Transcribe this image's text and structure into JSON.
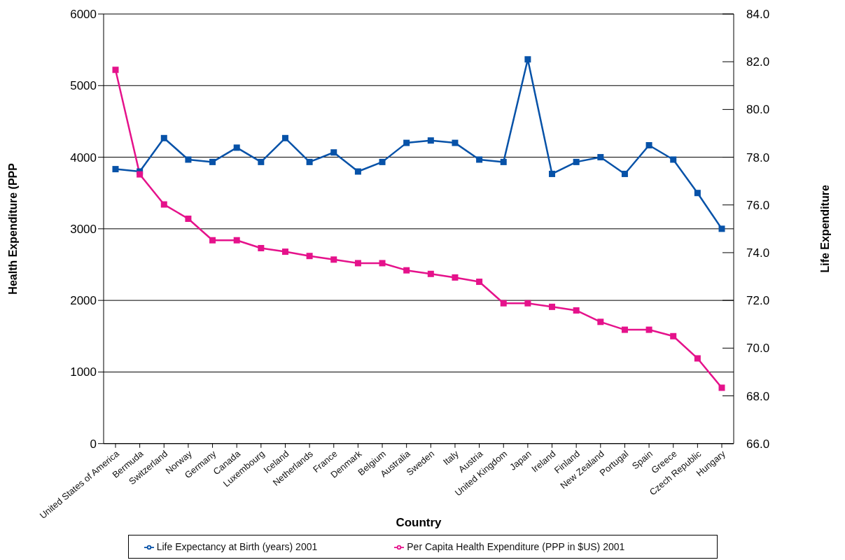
{
  "chart_data": {
    "type": "line",
    "xlabel": "Country",
    "ylabel": "Health Expenditure (PPP",
    "y2label": "Life Expenditure",
    "categories": [
      "United States of America",
      "Bermuda",
      "Switzerland",
      "Norway",
      "Germany",
      "Canada",
      "Luxembourg",
      "Iceland",
      "Netherlands",
      "France",
      "Denmark",
      "Belgium",
      "Australia",
      "Sweden",
      "Italy",
      "Austria",
      "United Kingdom",
      "Japan",
      "Ireland",
      "Finland",
      "New Zealand",
      "Portugal",
      "Spain",
      "Greece",
      "Czech Republic",
      "Hungary"
    ],
    "series": [
      {
        "name": "Per Capita Health Expenditure (PPP in $US) 2001",
        "color": "#e5128b",
        "values": [
          5220,
          3760,
          3340,
          3140,
          2840,
          2840,
          2730,
          2680,
          2620,
          2570,
          2520,
          2520,
          2420,
          2370,
          2320,
          2260,
          1960,
          1960,
          1910,
          1860,
          1700,
          1590,
          1590,
          1500,
          1190,
          780
        ]
      },
      {
        "name": "Life Expectancy at Birth (years) 2001",
        "color": "#0752a8",
        "axis": "y2",
        "values": [
          77.5,
          77.4,
          78.8,
          77.9,
          77.8,
          78.4,
          77.8,
          78.8,
          77.8,
          78.2,
          77.4,
          77.8,
          78.6,
          78.7,
          78.6,
          77.9,
          77.8,
          82.1,
          77.3,
          77.8,
          78.0,
          77.3,
          78.5,
          77.9,
          76.5,
          75.0
        ]
      }
    ],
    "ylim": [
      0,
      6000
    ],
    "yticks": [
      0,
      1000,
      2000,
      3000,
      4000,
      5000,
      6000
    ],
    "y2lim": [
      66,
      84
    ],
    "y2ticks": [
      {
        "value": 66,
        "label": "66.0"
      },
      {
        "value": 68,
        "label": "68.0"
      },
      {
        "value": 70,
        "label": "70.0"
      },
      {
        "value": 72,
        "label": "72.0"
      },
      {
        "value": 74,
        "label": "74.0"
      },
      {
        "value": 76,
        "label": "76.0"
      },
      {
        "value": 78,
        "label": "78.0"
      },
      {
        "value": 80,
        "label": "80.0"
      },
      {
        "value": 82,
        "label": "82.0"
      },
      {
        "value": 84,
        "label": "84.0"
      }
    ],
    "grid": "y",
    "legend": "bottom",
    "marker": "square",
    "line_style": "solid"
  }
}
